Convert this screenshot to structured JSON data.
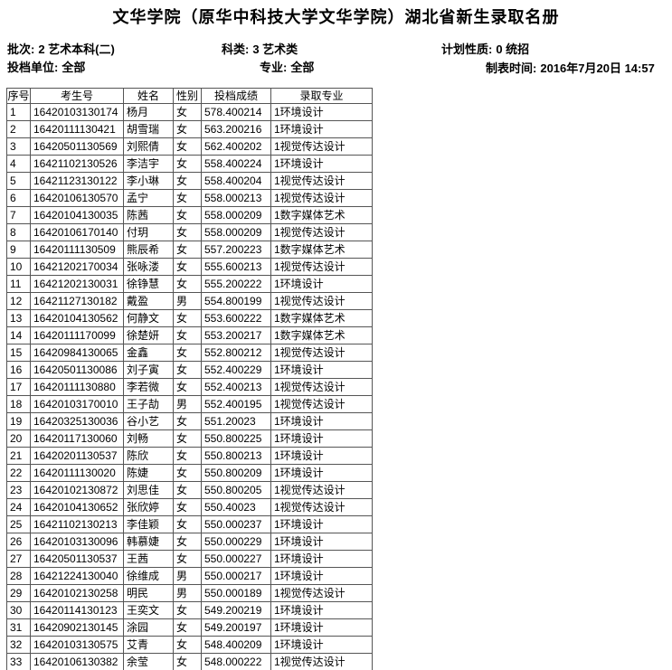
{
  "title": "文华学院（原华中科技大学文华学院）湖北省新生录取名册",
  "meta": {
    "batch": {
      "label": "批次:",
      "value": "2 艺术本科(二)"
    },
    "category": {
      "label": "科类:",
      "value": "3 艺术类"
    },
    "plan_type": {
      "label": "计划性质:",
      "value": "0 统招"
    },
    "file_unit": {
      "label": "投档单位:",
      "value": "全部"
    },
    "major": {
      "label": "专业:",
      "value": "全部"
    },
    "created_time": {
      "label": "制表时间:",
      "value": "2016年7月20日 14:57"
    }
  },
  "table": {
    "headers": [
      "序号",
      "考生号",
      "姓名",
      "性别",
      "投档成绩",
      "录取专业"
    ],
    "rows": [
      [
        "1",
        "16420103130174",
        "杨月",
        "女",
        "578.400214",
        "1环境设计"
      ],
      [
        "2",
        "16420111130421",
        "胡雪瑞",
        "女",
        "563.200216",
        "1环境设计"
      ],
      [
        "3",
        "16420501130569",
        "刘熙倩",
        "女",
        "562.400202",
        "1视觉传达设计"
      ],
      [
        "4",
        "16421102130526",
        "李洁宇",
        "女",
        "558.400224",
        "1环境设计"
      ],
      [
        "5",
        "16421123130122",
        "李小琳",
        "女",
        "558.400204",
        "1视觉传达设计"
      ],
      [
        "6",
        "16420106130570",
        "孟宁",
        "女",
        "558.000213",
        "1视觉传达设计"
      ],
      [
        "7",
        "16420104130035",
        "陈茜",
        "女",
        "558.000209",
        "1数字媒体艺术"
      ],
      [
        "8",
        "16420106170140",
        "付玥",
        "女",
        "558.000209",
        "1视觉传达设计"
      ],
      [
        "9",
        "16420111130509",
        "熊辰希",
        "女",
        "557.200223",
        "1数字媒体艺术"
      ],
      [
        "10",
        "16421202170034",
        "张咏溇",
        "女",
        "555.600213",
        "1视觉传达设计"
      ],
      [
        "11",
        "16421202130031",
        "徐铮慧",
        "女",
        "555.200222",
        "1环境设计"
      ],
      [
        "12",
        "16421127130182",
        "戴盈",
        "男",
        "554.800199",
        "1视觉传达设计"
      ],
      [
        "13",
        "16420104130562",
        "何静文",
        "女",
        "553.600222",
        "1数字媒体艺术"
      ],
      [
        "14",
        "16420111170099",
        "徐楚妍",
        "女",
        "553.200217",
        "1数字媒体艺术"
      ],
      [
        "15",
        "16420984130065",
        "金鑫",
        "女",
        "552.800212",
        "1视觉传达设计"
      ],
      [
        "16",
        "16420501130086",
        "刘子寅",
        "女",
        "552.400229",
        "1环境设计"
      ],
      [
        "17",
        "16420111130880",
        "李若微",
        "女",
        "552.400213",
        "1视觉传达设计"
      ],
      [
        "18",
        "16420103170010",
        "王子劼",
        "男",
        "552.400195",
        "1视觉传达设计"
      ],
      [
        "19",
        "16420325130036",
        "谷小艺",
        "女",
        "551.20023",
        "1环境设计"
      ],
      [
        "20",
        "16420117130060",
        "刘畅",
        "女",
        "550.800225",
        "1环境设计"
      ],
      [
        "21",
        "16420201130537",
        "陈欣",
        "女",
        "550.800213",
        "1环境设计"
      ],
      [
        "22",
        "16420111130020",
        "陈婕",
        "女",
        "550.800209",
        "1环境设计"
      ],
      [
        "23",
        "16420102130872",
        "刘思佳",
        "女",
        "550.800205",
        "1视觉传达设计"
      ],
      [
        "24",
        "16420104130652",
        "张欣婷",
        "女",
        "550.40023",
        "1视觉传达设计"
      ],
      [
        "25",
        "16421102130213",
        "李佳颖",
        "女",
        "550.000237",
        "1环境设计"
      ],
      [
        "26",
        "16420103130096",
        "韩慕婕",
        "女",
        "550.000229",
        "1环境设计"
      ],
      [
        "27",
        "16420501130537",
        "王茜",
        "女",
        "550.000227",
        "1环境设计"
      ],
      [
        "28",
        "16421224130040",
        "徐维成",
        "男",
        "550.000217",
        "1环境设计"
      ],
      [
        "29",
        "16420102130258",
        "明民",
        "男",
        "550.000189",
        "1视觉传达设计"
      ],
      [
        "30",
        "16420114130123",
        "王奕文",
        "女",
        "549.200219",
        "1环境设计"
      ],
      [
        "31",
        "16420902130145",
        "涂园",
        "女",
        "549.200197",
        "1环境设计"
      ],
      [
        "32",
        "16420103130575",
        "艾青",
        "女",
        "548.400209",
        "1环境设计"
      ],
      [
        "33",
        "16420106130382",
        "余莹",
        "女",
        "548.000222",
        "1视觉传达设计"
      ]
    ]
  }
}
